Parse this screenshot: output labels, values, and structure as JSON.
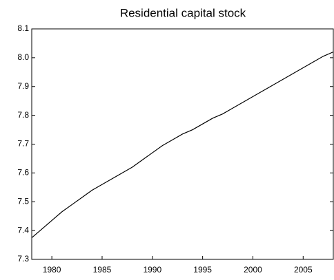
{
  "chart_data": {
    "type": "line",
    "title": "Residential capital stock",
    "x": [
      1978,
      1979,
      1980,
      1981,
      1982,
      1983,
      1984,
      1985,
      1986,
      1987,
      1988,
      1989,
      1990,
      1991,
      1992,
      1993,
      1994,
      1995,
      1996,
      1997,
      1998,
      1999,
      2000,
      2001,
      2002,
      2003,
      2004,
      2005,
      2006,
      2007,
      2008
    ],
    "values": [
      7.375,
      7.405,
      7.435,
      7.465,
      7.49,
      7.515,
      7.54,
      7.56,
      7.58,
      7.6,
      7.62,
      7.645,
      7.67,
      7.695,
      7.715,
      7.735,
      7.75,
      7.77,
      7.79,
      7.805,
      7.825,
      7.845,
      7.865,
      7.885,
      7.905,
      7.925,
      7.945,
      7.965,
      7.985,
      8.005,
      8.02
    ],
    "color": "#000000",
    "xlim": [
      1978,
      2008
    ],
    "xticks": [
      1980,
      1985,
      1990,
      1995,
      2000,
      2005
    ],
    "ylim": [
      7.3,
      8.1
    ],
    "yticks": [
      7.3,
      7.4,
      7.5,
      7.6,
      7.7,
      7.8,
      7.9,
      {
        "value": 8,
        "label": "8.0"
      },
      8.1
    ],
    "grid": false
  }
}
